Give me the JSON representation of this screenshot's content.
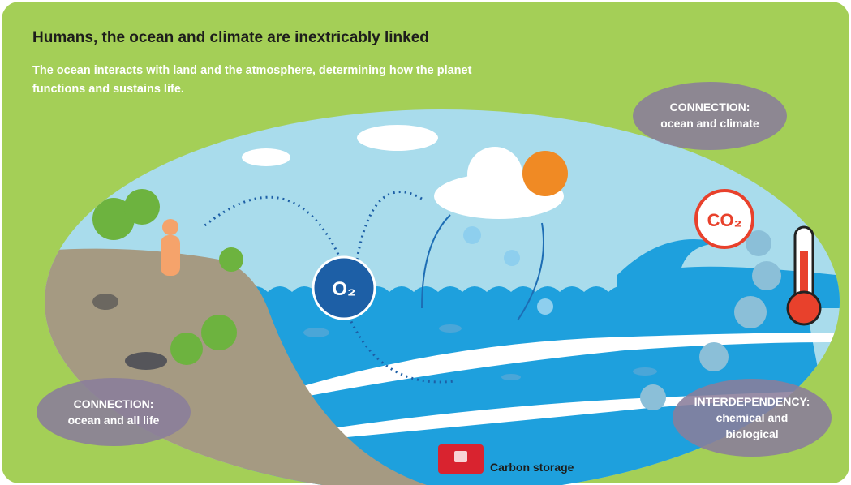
{
  "header": {
    "title": "Humans, the ocean and climate are inextricably linked",
    "subtitle_lines": [
      "The ocean interacts with land and the atmosphere, determining how the planet",
      "functions and sustains life."
    ]
  },
  "bubbles": [
    {
      "heading": "CONNECTION:",
      "text": [
        "ocean and climate"
      ]
    },
    {
      "heading": "CONNECTION:",
      "text": [
        "ocean and all life"
      ]
    },
    {
      "heading": "INTERDEPENDENCY:",
      "text": [
        "chemical and",
        "biological"
      ]
    }
  ],
  "labels": {
    "oxygen": "O₂",
    "carbon_dioxide": "CO₂",
    "carbon_storage": "Carbon storage"
  }
}
